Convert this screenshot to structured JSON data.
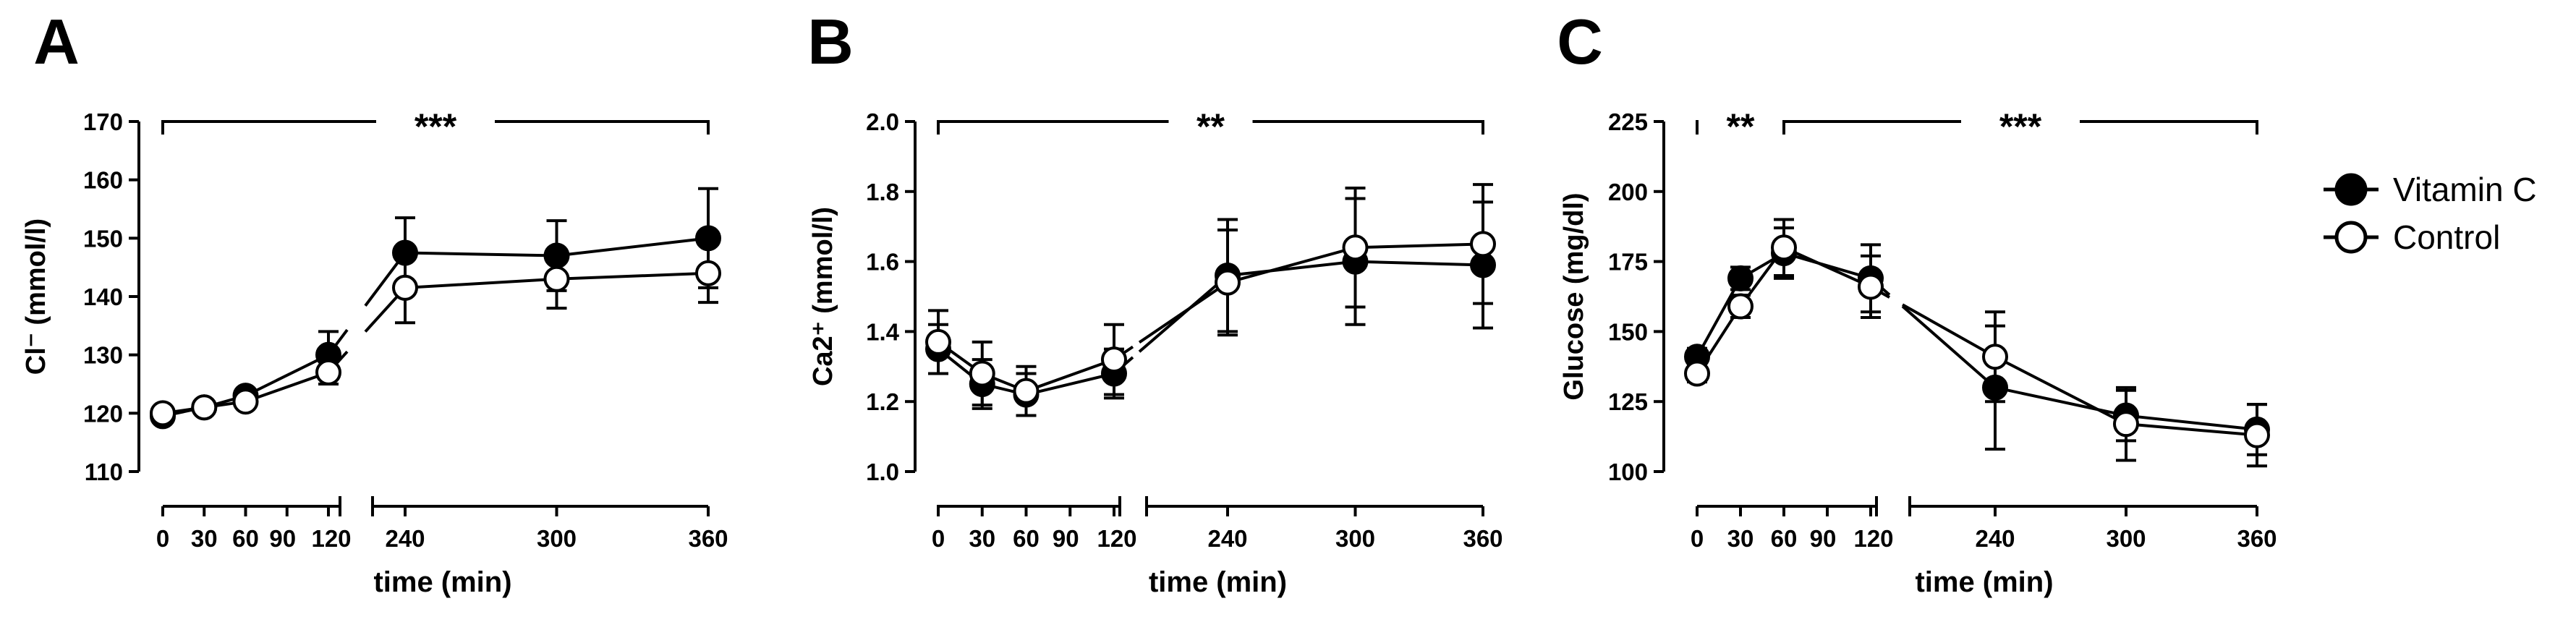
{
  "figure": {
    "legend": {
      "entries": [
        {
          "key": "vitc",
          "label": "Vitamin C",
          "marker": "filled-circle"
        },
        {
          "key": "ctrl",
          "label": "Control",
          "marker": "open-circle"
        }
      ]
    }
  },
  "chart_data": [
    {
      "type": "line",
      "panel": "A",
      "xlabel": "time (min)",
      "ylabel": "Cl⁻ (mmol/l)",
      "ylim": [
        110,
        170
      ],
      "yticks": [
        110,
        120,
        130,
        140,
        150,
        160,
        170
      ],
      "xticks": [
        0,
        30,
        60,
        90,
        120,
        240,
        300,
        360
      ],
      "xtick_labels": [
        "0",
        "30",
        "60",
        "90",
        "120",
        "240",
        "300",
        "360"
      ],
      "axis_break": true,
      "series": [
        {
          "name": "Vitamin C",
          "key": "vitc",
          "x": [
            0,
            30,
            60,
            120,
            240,
            300,
            360
          ],
          "values": [
            119.5,
            121,
            123,
            130,
            147.5,
            147,
            150
          ],
          "err": [
            1,
            1,
            1,
            4,
            6,
            6,
            8.5
          ]
        },
        {
          "name": "Control",
          "key": "ctrl",
          "x": [
            0,
            30,
            60,
            120,
            240,
            300,
            360
          ],
          "values": [
            120,
            121,
            122,
            127,
            141.5,
            143,
            144
          ],
          "err": [
            1,
            1,
            1,
            2,
            6,
            5,
            5
          ]
        }
      ],
      "significance": [
        {
          "label": "***",
          "from": 0,
          "to": 360
        }
      ]
    },
    {
      "type": "line",
      "panel": "B",
      "xlabel": "time (min)",
      "ylabel": "Ca2⁺ (mmol/l)",
      "ylim": [
        1.0,
        2.0
      ],
      "yticks": [
        1.0,
        1.2,
        1.4,
        1.6,
        1.8,
        2.0
      ],
      "ytick_labels": [
        "1.0",
        "1.2",
        "1.4",
        "1.6",
        "1.8",
        "2.0"
      ],
      "xticks": [
        0,
        30,
        60,
        90,
        120,
        240,
        300,
        360
      ],
      "xtick_labels": [
        "0",
        "30",
        "60",
        "90",
        "120",
        "240",
        "300",
        "360"
      ],
      "axis_break": true,
      "series": [
        {
          "name": "Vitamin C",
          "key": "vitc",
          "x": [
            0,
            30,
            60,
            120,
            240,
            300,
            360
          ],
          "values": [
            1.35,
            1.25,
            1.22,
            1.28,
            1.56,
            1.6,
            1.59
          ],
          "err": [
            0.07,
            0.07,
            0.06,
            0.07,
            0.16,
            0.18,
            0.18
          ]
        },
        {
          "name": "Control",
          "key": "ctrl",
          "x": [
            0,
            30,
            60,
            120,
            240,
            300,
            360
          ],
          "values": [
            1.37,
            1.28,
            1.23,
            1.32,
            1.54,
            1.64,
            1.65
          ],
          "err": [
            0.09,
            0.09,
            0.07,
            0.1,
            0.15,
            0.17,
            0.17
          ]
        }
      ],
      "significance": [
        {
          "label": "**",
          "from": 0,
          "to": 360
        }
      ]
    },
    {
      "type": "line",
      "panel": "C",
      "xlabel": "time (min)",
      "ylabel": "Glucose (mg/dl)",
      "ylim": [
        100,
        225
      ],
      "yticks": [
        100,
        125,
        150,
        175,
        200,
        225
      ],
      "xticks": [
        0,
        30,
        60,
        90,
        120,
        240,
        300,
        360
      ],
      "xtick_labels": [
        "0",
        "30",
        "60",
        "90",
        "120",
        "240",
        "300",
        "360"
      ],
      "axis_break": true,
      "series": [
        {
          "name": "Vitamin C",
          "key": "vitc",
          "x": [
            0,
            30,
            60,
            120,
            240,
            300,
            360
          ],
          "values": [
            141,
            169,
            178,
            169,
            130,
            120,
            115
          ],
          "err": [
            3,
            4,
            9,
            12,
            22,
            9,
            9
          ]
        },
        {
          "name": "Control",
          "key": "ctrl",
          "x": [
            0,
            30,
            60,
            120,
            240,
            300,
            360
          ],
          "values": [
            135,
            159,
            180,
            166,
            141,
            117,
            113
          ],
          "err": [
            3,
            4,
            10,
            11,
            16,
            13,
            11
          ]
        }
      ],
      "significance": [
        {
          "label": "**",
          "from": 0,
          "to": 60
        },
        {
          "label": "***",
          "from": 60,
          "to": 360
        }
      ]
    }
  ]
}
